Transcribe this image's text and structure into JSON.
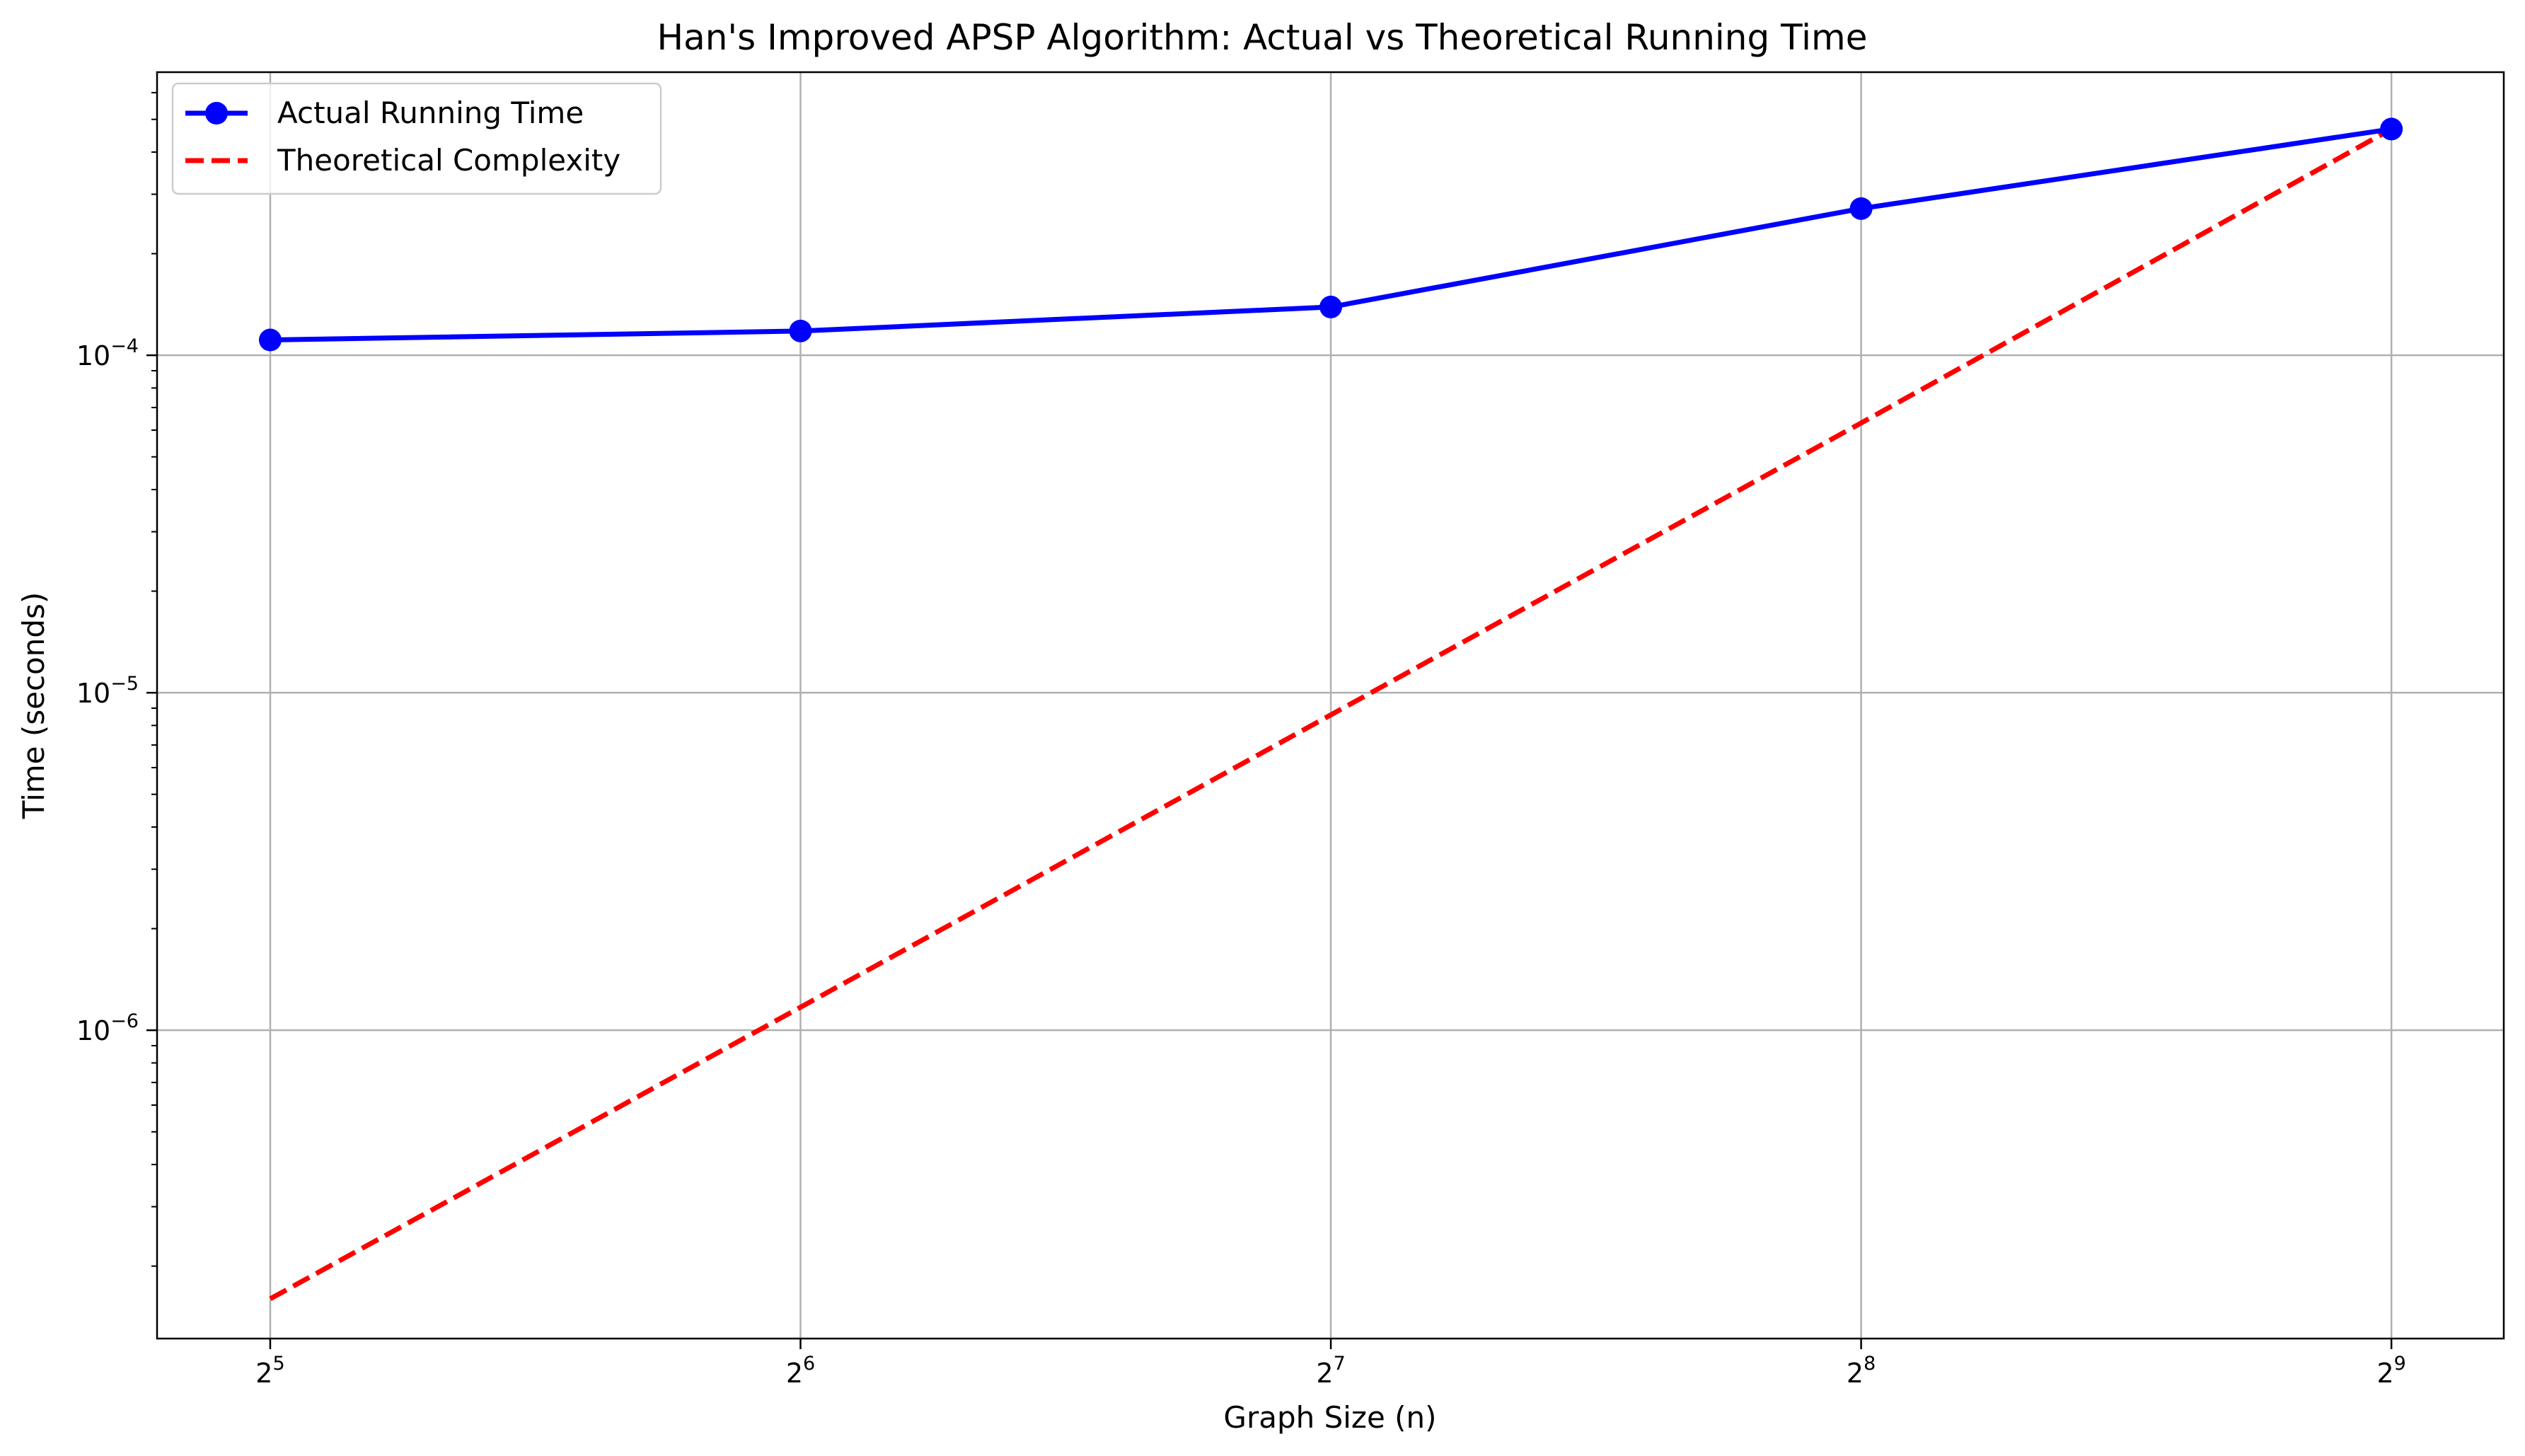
{
  "chart_data": {
    "type": "line",
    "title": "Han's Improved APSP Algorithm: Actual vs Theoretical Running Time",
    "xlabel": "Graph Size (n)",
    "ylabel": "Time (seconds)",
    "x_scale": "log2",
    "y_scale": "log10",
    "x": [
      32,
      64,
      128,
      256,
      512
    ],
    "xlim": [
      27.6,
      593
    ],
    "ylim": [
      1.22e-07,
      0.00069
    ],
    "x_ticks": [
      {
        "value": 32,
        "base": "2",
        "exp": "5"
      },
      {
        "value": 64,
        "base": "2",
        "exp": "6"
      },
      {
        "value": 128,
        "base": "2",
        "exp": "7"
      },
      {
        "value": 256,
        "base": "2",
        "exp": "8"
      },
      {
        "value": 512,
        "base": "2",
        "exp": "9"
      }
    ],
    "y_ticks": [
      {
        "value": 0.0001,
        "base": "10",
        "exp": "−4"
      },
      {
        "value": 1e-05,
        "base": "10",
        "exp": "−5"
      },
      {
        "value": 1e-06,
        "base": "10",
        "exp": "−6"
      }
    ],
    "grid": true,
    "legend_position": "top-left",
    "series": [
      {
        "name": "Actual Running Time",
        "color": "#0000ff",
        "style": "solid",
        "marker": "circle",
        "values": [
          0.000111,
          0.000118,
          0.000139,
          0.000272,
          0.000468
        ]
      },
      {
        "name": "Theoretical Complexity",
        "color": "#ff0000",
        "style": "dashed",
        "marker": "none",
        "values": [
          1.6e-07,
          1.17e-06,
          8.6e-06,
          6.3e-05,
          0.000468
        ]
      }
    ]
  }
}
